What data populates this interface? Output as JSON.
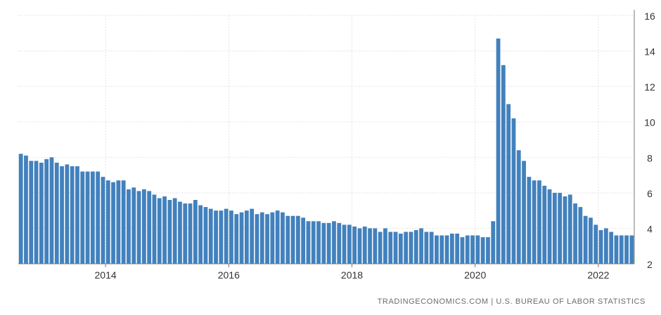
{
  "chart_data": {
    "type": "bar",
    "x_start": "2012-08",
    "x_interval": "month",
    "values": [
      8.2,
      8.1,
      7.8,
      7.8,
      7.7,
      7.9,
      8.0,
      7.7,
      7.5,
      7.6,
      7.5,
      7.5,
      7.2,
      7.2,
      7.2,
      7.2,
      6.9,
      6.7,
      6.6,
      6.7,
      6.7,
      6.2,
      6.3,
      6.1,
      6.2,
      6.1,
      5.9,
      5.7,
      5.8,
      5.6,
      5.7,
      5.5,
      5.4,
      5.4,
      5.6,
      5.3,
      5.2,
      5.1,
      5.0,
      5.0,
      5.1,
      5.0,
      4.8,
      4.9,
      5.0,
      5.1,
      4.8,
      4.9,
      4.8,
      4.9,
      5.0,
      4.9,
      4.7,
      4.7,
      4.7,
      4.6,
      4.4,
      4.4,
      4.4,
      4.3,
      4.3,
      4.4,
      4.3,
      4.2,
      4.2,
      4.1,
      4.0,
      4.1,
      4.0,
      4.0,
      3.8,
      4.0,
      3.8,
      3.8,
      3.7,
      3.8,
      3.8,
      3.9,
      4.0,
      3.8,
      3.8,
      3.6,
      3.6,
      3.6,
      3.7,
      3.7,
      3.5,
      3.6,
      3.6,
      3.6,
      3.5,
      3.5,
      4.4,
      14.7,
      13.2,
      11.0,
      10.2,
      8.4,
      7.8,
      6.9,
      6.7,
      6.7,
      6.4,
      6.2,
      6.0,
      6.0,
      5.8,
      5.9,
      5.4,
      5.2,
      4.7,
      4.6,
      4.2,
      3.9,
      4.0,
      3.8,
      3.6,
      3.6,
      3.6,
      3.6
    ],
    "x_tick_labels": [
      "2014",
      "2016",
      "2018",
      "2020",
      "2022"
    ],
    "y_ticks": [
      2,
      4,
      6,
      8,
      10,
      12,
      14,
      16
    ],
    "ylim": [
      2,
      16
    ],
    "grid": true,
    "bar_color": "#4281bd",
    "y_axis_side": "right",
    "legend": "none",
    "title": "",
    "xlabel": "",
    "ylabel": ""
  },
  "source": "TRADINGECONOMICS.COM  |  U.S. BUREAU OF LABOR STATISTICS"
}
